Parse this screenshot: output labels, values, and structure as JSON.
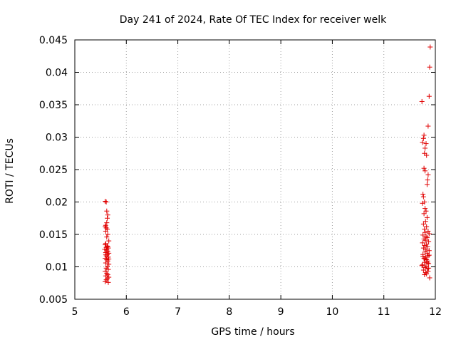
{
  "chart_data": {
    "type": "scatter",
    "title": "Day 241 of 2024, Rate Of TEC Index for receiver welk",
    "xlabel": "GPS time / hours",
    "ylabel": "ROTI / TECUs",
    "xlim": [
      5,
      12
    ],
    "ylim": [
      0.005,
      0.045
    ],
    "xticks": [
      5,
      6,
      7,
      8,
      9,
      10,
      11,
      12
    ],
    "xtick_labels": [
      "5",
      "6",
      "7",
      "8",
      "9",
      "10",
      "11",
      "12"
    ],
    "yticks": [
      0.005,
      0.01,
      0.015,
      0.02,
      0.025,
      0.03,
      0.035,
      0.04,
      0.045
    ],
    "ytick_labels": [
      "0.005",
      "0.01",
      "0.015",
      "0.02",
      "0.025",
      "0.03",
      "0.035",
      "0.04",
      "0.045"
    ],
    "grid": true,
    "marker": "+",
    "color": "#e00000",
    "series": [
      {
        "name": "ROTI",
        "points": [
          [
            5.59,
            0.0201
          ],
          [
            5.61,
            0.02
          ],
          [
            5.62,
            0.0186
          ],
          [
            5.64,
            0.018
          ],
          [
            5.63,
            0.0175
          ],
          [
            5.62,
            0.0168
          ],
          [
            5.6,
            0.0164
          ],
          [
            5.59,
            0.0162
          ],
          [
            5.61,
            0.016
          ],
          [
            5.63,
            0.0158
          ],
          [
            5.6,
            0.0155
          ],
          [
            5.64,
            0.015
          ],
          [
            5.62,
            0.0146
          ],
          [
            5.66,
            0.014
          ],
          [
            5.6,
            0.0136
          ],
          [
            5.59,
            0.0134
          ],
          [
            5.63,
            0.0132
          ],
          [
            5.61,
            0.013
          ],
          [
            5.65,
            0.0129
          ],
          [
            5.58,
            0.0127
          ],
          [
            5.62,
            0.0126
          ],
          [
            5.64,
            0.0124
          ],
          [
            5.6,
            0.0122
          ],
          [
            5.66,
            0.0121
          ],
          [
            5.63,
            0.0119
          ],
          [
            5.61,
            0.0117
          ],
          [
            5.65,
            0.0115
          ],
          [
            5.59,
            0.0113
          ],
          [
            5.62,
            0.0111
          ],
          [
            5.64,
            0.0109
          ],
          [
            5.6,
            0.0106
          ],
          [
            5.66,
            0.0104
          ],
          [
            5.63,
            0.0101
          ],
          [
            5.61,
            0.0098
          ],
          [
            5.65,
            0.0096
          ],
          [
            5.59,
            0.0093
          ],
          [
            5.62,
            0.009
          ],
          [
            5.64,
            0.0088
          ],
          [
            5.6,
            0.0086
          ],
          [
            5.66,
            0.0084
          ],
          [
            5.63,
            0.0082
          ],
          [
            5.61,
            0.008
          ],
          [
            5.59,
            0.0077
          ],
          [
            5.65,
            0.0076
          ],
          [
            5.62,
            0.0126
          ],
          [
            5.64,
            0.0131
          ],
          [
            5.6,
            0.0119
          ],
          [
            5.66,
            0.0112
          ],
          [
            11.9,
            0.0439
          ],
          [
            11.89,
            0.0408
          ],
          [
            11.88,
            0.0363
          ],
          [
            11.74,
            0.0355
          ],
          [
            11.86,
            0.0317
          ],
          [
            11.78,
            0.0303
          ],
          [
            11.77,
            0.0298
          ],
          [
            11.75,
            0.0292
          ],
          [
            11.82,
            0.029
          ],
          [
            11.8,
            0.0283
          ],
          [
            11.79,
            0.0275
          ],
          [
            11.83,
            0.0272
          ],
          [
            11.78,
            0.0252
          ],
          [
            11.8,
            0.0248
          ],
          [
            11.86,
            0.0242
          ],
          [
            11.85,
            0.0234
          ],
          [
            11.84,
            0.0227
          ],
          [
            11.76,
            0.0212
          ],
          [
            11.77,
            0.0208
          ],
          [
            11.79,
            0.02
          ],
          [
            11.75,
            0.0198
          ],
          [
            11.8,
            0.019
          ],
          [
            11.82,
            0.0186
          ],
          [
            11.78,
            0.0182
          ],
          [
            11.84,
            0.0176
          ],
          [
            11.81,
            0.017
          ],
          [
            11.77,
            0.0166
          ],
          [
            11.83,
            0.0162
          ],
          [
            11.79,
            0.0158
          ],
          [
            11.86,
            0.0155
          ],
          [
            11.8,
            0.0153
          ],
          [
            11.88,
            0.0151
          ],
          [
            11.76,
            0.0149
          ],
          [
            11.82,
            0.0147
          ],
          [
            11.84,
            0.0145
          ],
          [
            11.78,
            0.0143
          ],
          [
            11.81,
            0.0141
          ],
          [
            11.87,
            0.0139
          ],
          [
            11.75,
            0.0137
          ],
          [
            11.83,
            0.0135
          ],
          [
            11.79,
            0.0133
          ],
          [
            11.85,
            0.0131
          ],
          [
            11.77,
            0.0129
          ],
          [
            11.82,
            0.0127
          ],
          [
            11.88,
            0.0125
          ],
          [
            11.8,
            0.0123
          ],
          [
            11.84,
            0.0121
          ],
          [
            11.76,
            0.0119
          ],
          [
            11.86,
            0.0117
          ],
          [
            11.81,
            0.0115
          ],
          [
            11.78,
            0.0113
          ],
          [
            11.83,
            0.0111
          ],
          [
            11.85,
            0.0109
          ],
          [
            11.79,
            0.0107
          ],
          [
            11.87,
            0.0105
          ],
          [
            11.75,
            0.0103
          ],
          [
            11.82,
            0.0101
          ],
          [
            11.8,
            0.0099
          ],
          [
            11.84,
            0.0097
          ],
          [
            11.77,
            0.0095
          ],
          [
            11.86,
            0.0093
          ],
          [
            11.81,
            0.0091
          ],
          [
            11.83,
            0.0089
          ],
          [
            11.79,
            0.0088
          ],
          [
            11.89,
            0.0083
          ],
          [
            11.88,
            0.0118
          ],
          [
            11.76,
            0.0116
          ],
          [
            11.8,
            0.0112
          ],
          [
            11.85,
            0.0106
          ],
          [
            11.74,
            0.0102
          ],
          [
            11.87,
            0.0098
          ]
        ]
      }
    ]
  }
}
